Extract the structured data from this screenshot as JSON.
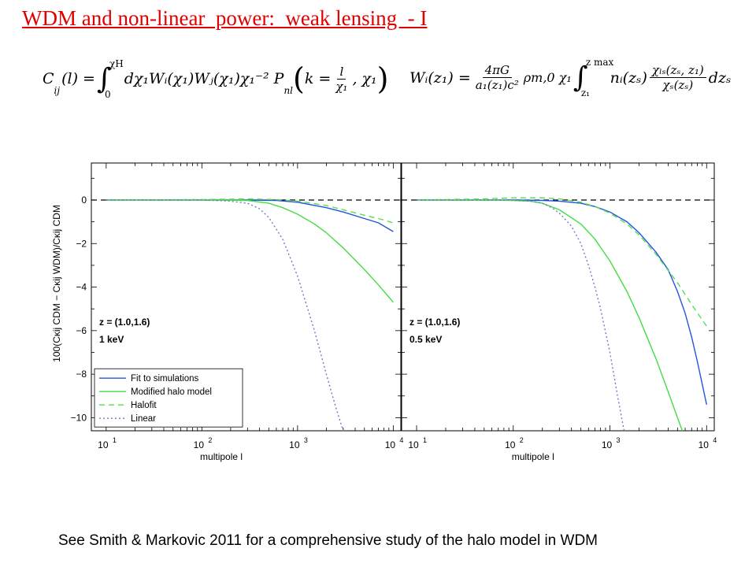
{
  "slide": {
    "title": "WDM and non-linear  power:  weak lensing  - I",
    "footer": "See Smith & Markovic 2011 for a comprehensive study of the halo model in WDM"
  },
  "equations": {
    "left": {
      "lhs": "C",
      "lhs_sub": "ij",
      "lhs_arg": "(l) =",
      "int_upper": "χH",
      "int_lower": "0",
      "body": "dχ₁Wᵢ(χ₁)Wⱼ(χ₁)χ₁⁻² P",
      "p_sub": "nl",
      "k_part": "k =",
      "frac_num": "l",
      "frac_den": "χ₁",
      "tail": ", χ₁"
    },
    "right": {
      "lhs": "Wᵢ(z₁) =",
      "frac_num": "4πG",
      "frac_den": "a₁(z₁)c²",
      "mid": "ρm,0 χ₁",
      "int_upper": "z max",
      "int_lower": "z₁",
      "body": "nᵢ(zₛ)",
      "frac2_num": "χₗₛ(zₛ, z₁)",
      "frac2_den": "χₛ(zₛ)",
      "tail": "dzₛ"
    }
  },
  "chart_data": [
    {
      "type": "line",
      "xscale": "log",
      "xlim": [
        7,
        12000
      ],
      "ylim": [
        -10.6,
        1.7
      ],
      "xticks": [
        10,
        100,
        1000,
        10000
      ],
      "xtick_labels": [
        [
          "10",
          "1"
        ],
        [
          "10",
          "2"
        ],
        [
          "10",
          "3"
        ],
        [
          "10",
          "4"
        ]
      ],
      "yticks": [
        0,
        -2,
        -4,
        -6,
        -8,
        -10
      ],
      "ytick_labels": [
        "0",
        "−2",
        "−4",
        "−6",
        "−8",
        "−10"
      ],
      "xlabel": "multipole l",
      "ylabel": "100(C",
      "ylabel_full": "100(Cκij CDM − Cκij WDM)/Cκij CDM",
      "annotation": [
        "z = (1.0,1.6)",
        "1 keV"
      ],
      "legend": {
        "placement": "bottom-left",
        "entries": [
          "Fit to simulations",
          "Modified halo model",
          "Halofit",
          "Linear"
        ]
      },
      "series": [
        {
          "name": "Fit to simulations",
          "color": "#2255dd",
          "dash": "solid",
          "x": [
            10,
            100,
            300,
            600,
            1000,
            2000,
            3000,
            5000,
            7000,
            10000
          ],
          "y": [
            0,
            0,
            0,
            -0.02,
            -0.1,
            -0.35,
            -0.55,
            -0.85,
            -1.05,
            -1.45
          ]
        },
        {
          "name": "Modified halo model",
          "color": "#44dd44",
          "dash": "solid",
          "x": [
            10,
            100,
            200,
            300,
            500,
            700,
            1000,
            1500,
            2000,
            3000,
            5000,
            7000,
            10000
          ],
          "y": [
            0,
            0,
            0,
            -0.02,
            -0.15,
            -0.35,
            -0.65,
            -1.1,
            -1.5,
            -2.2,
            -3.2,
            -3.9,
            -4.7
          ]
        },
        {
          "name": "Halofit",
          "color": "#55dd55",
          "dash": "dashed",
          "x": [
            10,
            100,
            300,
            500,
            700,
            1000,
            2000,
            3000,
            5000,
            7000,
            10000
          ],
          "y": [
            0,
            0.02,
            0.05,
            0.03,
            0,
            -0.05,
            -0.25,
            -0.45,
            -0.7,
            -0.85,
            -1.05
          ]
        },
        {
          "name": "Linear",
          "color": "#7777cc",
          "dash": "dotted",
          "x": [
            10,
            100,
            200,
            300,
            400,
            500,
            700,
            1000,
            1500,
            2000,
            2500,
            3000
          ],
          "y": [
            0,
            0,
            -0.05,
            -0.15,
            -0.4,
            -0.8,
            -1.8,
            -3.5,
            -6,
            -8,
            -9.5,
            -10.6
          ]
        }
      ]
    },
    {
      "type": "line",
      "xscale": "log",
      "xlim": [
        7,
        12000
      ],
      "ylim": [
        -10.6,
        1.7
      ],
      "xticks": [
        10,
        100,
        1000,
        10000
      ],
      "xtick_labels": [
        [
          "10",
          "1"
        ],
        [
          "10",
          "2"
        ],
        [
          "10",
          "3"
        ],
        [
          "10",
          "4"
        ]
      ],
      "xlabel": "multipole l",
      "annotation": [
        "z = (1.0,1.6)",
        "0.5 keV"
      ],
      "series": [
        {
          "name": "Fit to simulations",
          "color": "#2255dd",
          "dash": "solid",
          "x": [
            10,
            100,
            200,
            300,
            500,
            700,
            1000,
            1500,
            2000,
            3000,
            4000,
            5000,
            6000,
            7000,
            8000,
            10000
          ],
          "y": [
            0,
            0,
            -0.02,
            -0.05,
            -0.15,
            -0.3,
            -0.55,
            -1.0,
            -1.5,
            -2.4,
            -3.2,
            -4.2,
            -5.2,
            -6.3,
            -7.4,
            -9.4
          ]
        },
        {
          "name": "Modified halo model",
          "color": "#44dd44",
          "dash": "solid",
          "x": [
            10,
            70,
            150,
            200,
            300,
            500,
            700,
            1000,
            1500,
            2000,
            3000,
            4000,
            5000,
            5600
          ],
          "y": [
            0,
            0,
            -0.05,
            -0.15,
            -0.45,
            -1.1,
            -1.8,
            -2.8,
            -4.2,
            -5.4,
            -7.3,
            -8.8,
            -10.0,
            -10.6
          ]
        },
        {
          "name": "Halofit",
          "color": "#55dd55",
          "dash": "dashed",
          "x": [
            10,
            50,
            100,
            200,
            300,
            500,
            700,
            1000,
            1500,
            2000,
            3000,
            5000,
            7000,
            10000
          ],
          "y": [
            0,
            0.05,
            0.1,
            0.1,
            0.05,
            -0.1,
            -0.3,
            -0.6,
            -1.1,
            -1.6,
            -2.5,
            -3.8,
            -4.8,
            -5.8
          ]
        },
        {
          "name": "Linear",
          "color": "#7777cc",
          "dash": "dotted",
          "x": [
            10,
            100,
            150,
            200,
            250,
            300,
            400,
            500,
            600,
            700,
            800,
            1000,
            1200,
            1400
          ],
          "y": [
            0,
            0,
            -0.05,
            -0.15,
            -0.35,
            -0.6,
            -1.2,
            -2.0,
            -3.0,
            -4.0,
            -5.0,
            -7.0,
            -9.0,
            -10.6
          ]
        }
      ]
    }
  ]
}
